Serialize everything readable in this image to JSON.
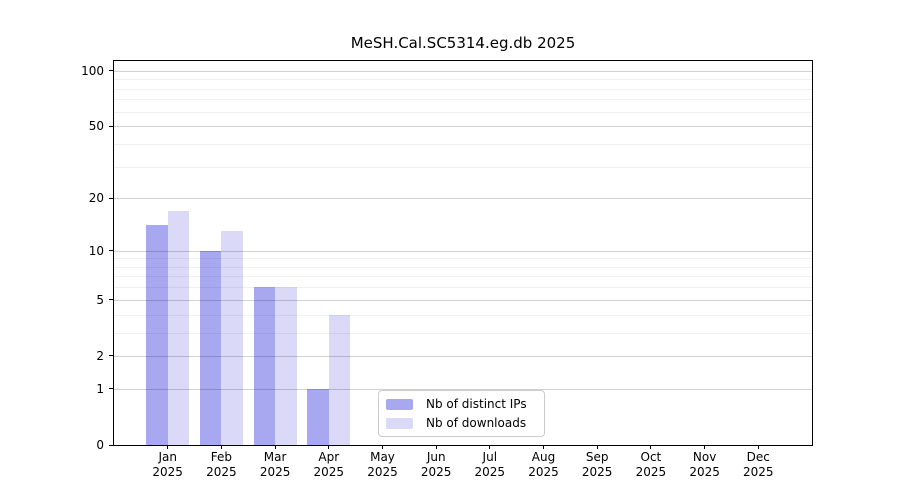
{
  "chart_data": {
    "type": "bar",
    "title": "MeSH.Cal.SC5314.eg.db 2025",
    "categories": [
      "Jan",
      "Feb",
      "Mar",
      "Apr",
      "May",
      "Jun",
      "Jul",
      "Aug",
      "Sep",
      "Oct",
      "Nov",
      "Dec"
    ],
    "year_label": "2025",
    "series": [
      {
        "name": "Nb of distinct IPs",
        "slug": "distinct-ips",
        "color": "#a8a8f0",
        "values": [
          14,
          10,
          6,
          1,
          0,
          0,
          0,
          0,
          0,
          0,
          0,
          0
        ]
      },
      {
        "name": "Nb of downloads",
        "slug": "downloads",
        "color": "#dadaf8",
        "values": [
          17,
          13,
          6,
          4,
          0,
          0,
          0,
          0,
          0,
          0,
          0,
          0
        ]
      }
    ],
    "yscale": "log1p",
    "ylim": [
      0,
      113
    ],
    "yticks_major": [
      0,
      1,
      2,
      5,
      10,
      20,
      50,
      100
    ],
    "yticks_minor": [
      3,
      4,
      6,
      7,
      8,
      9,
      30,
      40,
      60,
      70,
      80,
      90
    ],
    "grid": "horizontal",
    "legend_position": "inside-lower-center",
    "colors": {
      "axis": "#000000",
      "major_grid": "rgba(0,0,0,0.18)",
      "minor_grid": "rgba(0,0,0,0.06)",
      "background": "#ffffff"
    }
  }
}
